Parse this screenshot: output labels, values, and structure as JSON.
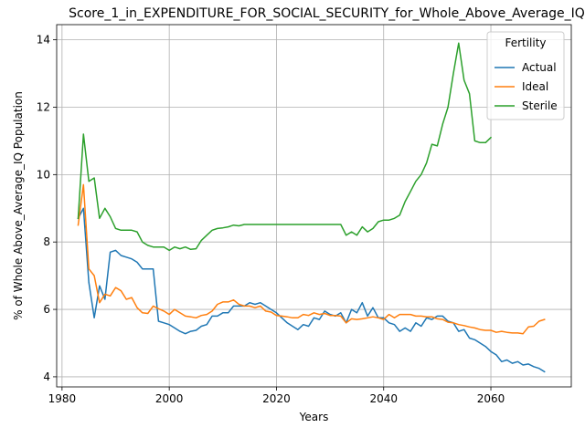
{
  "chart_data": {
    "type": "line",
    "title": "Score_1_in_EXPENDITURE_FOR_SOCIAL_SECURITY_for_Whole_Above_Average_IQ",
    "xlabel": "Years",
    "ylabel": "% of Whole Above_Average_IQ Population",
    "xlim": [
      1979,
      2075
    ],
    "ylim": [
      3.7,
      14.45
    ],
    "x_ticks": [
      1980,
      2000,
      2020,
      2040,
      2060
    ],
    "y_ticks": [
      4,
      6,
      8,
      10,
      12,
      14
    ],
    "grid": true,
    "legend": {
      "title": "Fertility",
      "placement": "top-right"
    },
    "colors": {
      "Actual": "#1f77b4",
      "Ideal": "#ff7f0e",
      "Sterile": "#2ca02c"
    },
    "series": [
      {
        "name": "Actual",
        "x": [
          1983,
          1984,
          1985,
          1986,
          1987,
          1988,
          1989,
          1990,
          1991,
          1992,
          1993,
          1994,
          1995,
          1996,
          1997,
          1998,
          1999,
          2000,
          2001,
          2002,
          2003,
          2004,
          2005,
          2006,
          2007,
          2008,
          2009,
          2010,
          2011,
          2012,
          2013,
          2014,
          2015,
          2016,
          2017,
          2018,
          2019,
          2020,
          2021,
          2022,
          2023,
          2024,
          2025,
          2026,
          2027,
          2028,
          2029,
          2030,
          2031,
          2032,
          2033,
          2034,
          2035,
          2036,
          2037,
          2038,
          2039,
          2040,
          2041,
          2042,
          2043,
          2044,
          2045,
          2046,
          2047,
          2048,
          2049,
          2050,
          2051,
          2052,
          2053,
          2054,
          2055,
          2056,
          2057,
          2058,
          2059,
          2060,
          2061,
          2062,
          2063,
          2064,
          2065,
          2066,
          2067,
          2068,
          2069,
          2070
        ],
        "values": [
          8.7,
          9.0,
          6.8,
          5.75,
          6.7,
          6.3,
          7.7,
          7.75,
          7.6,
          7.55,
          7.5,
          7.4,
          7.2,
          7.2,
          7.2,
          5.65,
          5.6,
          5.55,
          5.45,
          5.35,
          5.28,
          5.35,
          5.38,
          5.5,
          5.55,
          5.8,
          5.8,
          5.9,
          5.9,
          6.1,
          6.1,
          6.1,
          6.2,
          6.15,
          6.2,
          6.1,
          6.0,
          5.9,
          5.75,
          5.6,
          5.5,
          5.4,
          5.55,
          5.5,
          5.75,
          5.7,
          5.95,
          5.85,
          5.8,
          5.9,
          5.6,
          6.0,
          5.9,
          6.2,
          5.8,
          6.05,
          5.75,
          5.75,
          5.6,
          5.55,
          5.35,
          5.45,
          5.35,
          5.6,
          5.5,
          5.75,
          5.7,
          5.8,
          5.8,
          5.65,
          5.6,
          5.35,
          5.4,
          5.15,
          5.1,
          5.0,
          4.9,
          4.75,
          4.65,
          4.45,
          4.5,
          4.4,
          4.45,
          4.35,
          4.38,
          4.3,
          4.25,
          4.15
        ]
      },
      {
        "name": "Ideal",
        "x": [
          1983,
          1984,
          1985,
          1986,
          1987,
          1988,
          1989,
          1990,
          1991,
          1992,
          1993,
          1994,
          1995,
          1996,
          1997,
          1998,
          1999,
          2000,
          2001,
          2002,
          2003,
          2004,
          2005,
          2006,
          2007,
          2008,
          2009,
          2010,
          2011,
          2012,
          2013,
          2014,
          2015,
          2016,
          2017,
          2018,
          2019,
          2020,
          2021,
          2022,
          2023,
          2024,
          2025,
          2026,
          2027,
          2028,
          2029,
          2030,
          2031,
          2032,
          2033,
          2034,
          2035,
          2036,
          2037,
          2038,
          2039,
          2040,
          2041,
          2042,
          2043,
          2044,
          2045,
          2046,
          2047,
          2048,
          2049,
          2050,
          2051,
          2052,
          2053,
          2054,
          2055,
          2056,
          2057,
          2058,
          2059,
          2060,
          2061,
          2062,
          2063,
          2064,
          2065,
          2066,
          2067,
          2068,
          2069,
          2070
        ],
        "values": [
          8.5,
          9.7,
          7.2,
          7.0,
          6.2,
          6.45,
          6.4,
          6.65,
          6.55,
          6.3,
          6.35,
          6.05,
          5.9,
          5.88,
          6.1,
          6.02,
          5.95,
          5.85,
          6.0,
          5.9,
          5.8,
          5.78,
          5.75,
          5.82,
          5.85,
          5.95,
          6.15,
          6.22,
          6.22,
          6.28,
          6.15,
          6.1,
          6.1,
          6.05,
          6.1,
          5.95,
          5.92,
          5.82,
          5.8,
          5.78,
          5.75,
          5.75,
          5.85,
          5.82,
          5.9,
          5.85,
          5.88,
          5.82,
          5.82,
          5.8,
          5.6,
          5.72,
          5.7,
          5.72,
          5.75,
          5.78,
          5.75,
          5.7,
          5.85,
          5.75,
          5.85,
          5.85,
          5.85,
          5.8,
          5.8,
          5.78,
          5.78,
          5.72,
          5.7,
          5.62,
          5.6,
          5.55,
          5.52,
          5.48,
          5.45,
          5.4,
          5.38,
          5.38,
          5.32,
          5.35,
          5.32,
          5.3,
          5.3,
          5.28,
          5.48,
          5.5,
          5.65,
          5.7
        ]
      },
      {
        "name": "Sterile",
        "x": [
          1983,
          1984,
          1985,
          1986,
          1987,
          1988,
          1989,
          1990,
          1991,
          1992,
          1993,
          1994,
          1995,
          1996,
          1997,
          1998,
          1999,
          2000,
          2001,
          2002,
          2003,
          2004,
          2005,
          2006,
          2007,
          2008,
          2009,
          2010,
          2011,
          2012,
          2013,
          2014,
          2015,
          2016,
          2017,
          2018,
          2019,
          2020,
          2021,
          2022,
          2023,
          2024,
          2025,
          2026,
          2027,
          2028,
          2029,
          2030,
          2031,
          2032,
          2033,
          2034,
          2035,
          2036,
          2037,
          2038,
          2039,
          2040,
          2041,
          2042,
          2043,
          2044,
          2045,
          2046,
          2047,
          2048,
          2049,
          2050,
          2051,
          2052,
          2053,
          2054,
          2055,
          2056,
          2057,
          2058,
          2059,
          2060
        ],
        "values": [
          8.7,
          11.2,
          9.8,
          9.9,
          8.7,
          9.0,
          8.75,
          8.4,
          8.35,
          8.35,
          8.35,
          8.3,
          8.0,
          7.9,
          7.85,
          7.85,
          7.85,
          7.75,
          7.85,
          7.8,
          7.85,
          7.78,
          7.8,
          8.05,
          8.2,
          8.35,
          8.4,
          8.42,
          8.45,
          8.5,
          8.48,
          8.52,
          8.52,
          8.52,
          8.52,
          8.52,
          8.52,
          8.52,
          8.52,
          8.52,
          8.52,
          8.52,
          8.52,
          8.52,
          8.52,
          8.52,
          8.52,
          8.52,
          8.52,
          8.52,
          8.2,
          8.3,
          8.2,
          8.45,
          8.3,
          8.4,
          8.6,
          8.65,
          8.65,
          8.7,
          8.8,
          9.2,
          9.5,
          9.8,
          10.0,
          10.35,
          10.9,
          10.85,
          11.5,
          12.0,
          13.0,
          13.9,
          12.8,
          12.4,
          11.0,
          10.95,
          10.95,
          11.1
        ]
      }
    ]
  }
}
